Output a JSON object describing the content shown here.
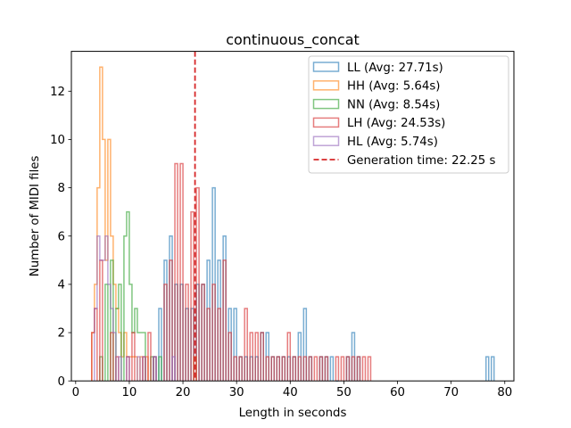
{
  "chart_data": {
    "type": "histogram",
    "title": "continuous_concat",
    "xlabel": "Length in seconds",
    "ylabel": "Number of MIDI files",
    "xlim": [
      -0.8,
      81.7
    ],
    "ylim": [
      0,
      13.65
    ],
    "xticks": [
      0,
      10,
      20,
      30,
      40,
      50,
      60,
      70,
      80
    ],
    "yticks": [
      0,
      2,
      4,
      6,
      8,
      10,
      12
    ],
    "grid": false,
    "legend_position": "upper-right",
    "vline": {
      "x": 22.25,
      "label": "Generation time: 22.25 s",
      "color": "#d62728",
      "style": "dashed"
    },
    "series": [
      {
        "name": "LL (Avg: 27.71s)",
        "color": "#1f77b4",
        "bins": [
          [
            14.5,
            1
          ],
          [
            15.5,
            3
          ],
          [
            16.5,
            5
          ],
          [
            17.5,
            6
          ],
          [
            18.5,
            4
          ],
          [
            19.5,
            4
          ],
          [
            20.5,
            3
          ],
          [
            21.5,
            3
          ],
          [
            22.5,
            4
          ],
          [
            23.5,
            4
          ],
          [
            24.5,
            5
          ],
          [
            25.5,
            8
          ],
          [
            26.5,
            5
          ],
          [
            27.5,
            6
          ],
          [
            28.5,
            3
          ],
          [
            29.5,
            3
          ],
          [
            30.5,
            1
          ],
          [
            31.5,
            1
          ],
          [
            32.5,
            1
          ],
          [
            33.5,
            1
          ],
          [
            34.5,
            2
          ],
          [
            35.5,
            2
          ],
          [
            36.5,
            1
          ],
          [
            37.5,
            1
          ],
          [
            38.5,
            1
          ],
          [
            39.5,
            1
          ],
          [
            40.5,
            1
          ],
          [
            41.5,
            2
          ],
          [
            42.5,
            3
          ],
          [
            43.5,
            1
          ],
          [
            45.5,
            1
          ],
          [
            46.5,
            1
          ],
          [
            47.5,
            1
          ],
          [
            48.5,
            0
          ],
          [
            50.5,
            1
          ],
          [
            51.5,
            2
          ],
          [
            52.5,
            1
          ],
          [
            76.5,
            1
          ],
          [
            77.5,
            1
          ]
        ]
      },
      {
        "name": "HH (Avg: 5.64s)",
        "color": "#ff7f0e",
        "bins": [
          [
            3.0,
            2
          ],
          [
            3.5,
            4
          ],
          [
            4.0,
            8
          ],
          [
            4.5,
            13
          ],
          [
            5.0,
            10
          ],
          [
            5.5,
            5
          ],
          [
            6.0,
            10
          ],
          [
            6.5,
            6
          ],
          [
            7.0,
            4
          ],
          [
            7.5,
            3
          ],
          [
            8.0,
            2
          ],
          [
            8.5,
            1
          ],
          [
            9.0,
            2
          ],
          [
            9.5,
            1
          ],
          [
            10.0,
            1
          ],
          [
            10.5,
            1
          ],
          [
            11.0,
            1
          ],
          [
            12.0,
            1
          ],
          [
            13.0,
            1
          ],
          [
            22.0,
            1
          ]
        ]
      },
      {
        "name": "NN (Avg: 8.54s)",
        "color": "#2ca02c",
        "bins": [
          [
            4.5,
            1
          ],
          [
            5.5,
            4
          ],
          [
            6.5,
            5
          ],
          [
            7.5,
            3
          ],
          [
            8.0,
            4
          ],
          [
            9.0,
            6
          ],
          [
            9.5,
            7
          ],
          [
            10.0,
            4
          ],
          [
            10.5,
            2
          ],
          [
            11.0,
            3
          ],
          [
            11.5,
            2
          ],
          [
            12.0,
            2
          ],
          [
            12.5,
            2
          ],
          [
            14.0,
            1
          ],
          [
            15.5,
            1
          ]
        ]
      },
      {
        "name": "LH (Avg: 24.53s)",
        "color": "#d62728",
        "bins": [
          [
            3.0,
            2
          ],
          [
            3.5,
            3
          ],
          [
            4.5,
            5
          ],
          [
            6.5,
            2
          ],
          [
            7.5,
            1
          ],
          [
            9.5,
            1
          ],
          [
            10.5,
            2
          ],
          [
            12.5,
            1
          ],
          [
            13.5,
            2
          ],
          [
            14.5,
            1
          ],
          [
            16.5,
            4
          ],
          [
            17.5,
            5
          ],
          [
            18.5,
            9
          ],
          [
            19.5,
            9
          ],
          [
            20.5,
            4
          ],
          [
            21.5,
            7
          ],
          [
            22.5,
            8
          ],
          [
            23.5,
            4
          ],
          [
            24.5,
            3
          ],
          [
            25.5,
            4
          ],
          [
            26.5,
            3
          ],
          [
            27.5,
            5
          ],
          [
            28.5,
            2
          ],
          [
            29.5,
            1
          ],
          [
            30.5,
            1
          ],
          [
            31.5,
            3
          ],
          [
            32.5,
            2
          ],
          [
            33.5,
            2
          ],
          [
            34.5,
            2
          ],
          [
            35.5,
            1
          ],
          [
            36.5,
            1
          ],
          [
            37.5,
            1
          ],
          [
            38.5,
            1
          ],
          [
            39.5,
            2
          ],
          [
            40.5,
            1
          ],
          [
            41.5,
            1
          ],
          [
            42.5,
            1
          ],
          [
            43.5,
            1
          ],
          [
            44.5,
            1
          ],
          [
            45.5,
            1
          ],
          [
            46.5,
            1
          ],
          [
            48.5,
            1
          ],
          [
            49.5,
            1
          ],
          [
            50.5,
            1
          ],
          [
            51.5,
            1
          ],
          [
            52.5,
            1
          ],
          [
            53.5,
            1
          ],
          [
            54.5,
            1
          ]
        ]
      },
      {
        "name": "HL (Avg: 5.74s)",
        "color": "#9467bd",
        "bins": [
          [
            3.5,
            3
          ],
          [
            4.0,
            6
          ],
          [
            4.5,
            5
          ],
          [
            5.0,
            5
          ],
          [
            5.5,
            6
          ],
          [
            6.0,
            4
          ],
          [
            6.5,
            3
          ],
          [
            7.0,
            2
          ],
          [
            8.0,
            1
          ],
          [
            9.5,
            1
          ],
          [
            11.5,
            1
          ],
          [
            12.5,
            1
          ],
          [
            14.5,
            1
          ],
          [
            18.0,
            1
          ]
        ]
      }
    ]
  }
}
